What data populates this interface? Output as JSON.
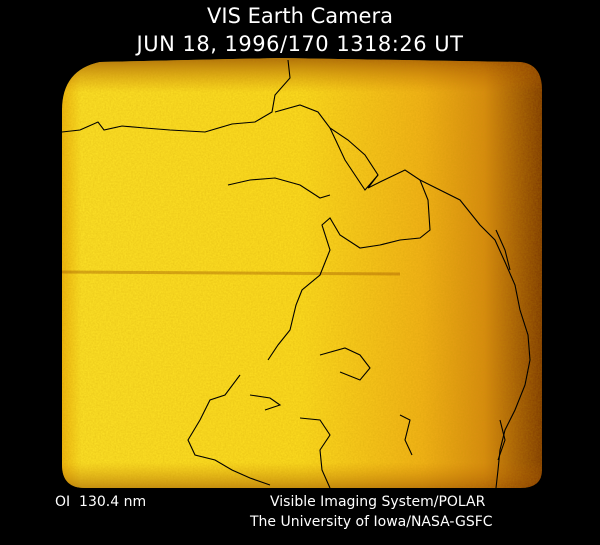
{
  "header": {
    "title": "VIS Earth Camera",
    "timestamp": "JUN 18, 1996/170 1318:26 UT"
  },
  "footer": {
    "filter": "OI  130.4 nm",
    "credit_lines": [
      "Visible Imaging System/POLAR",
      "The University of Iowa/NASA-GSFC"
    ]
  }
}
